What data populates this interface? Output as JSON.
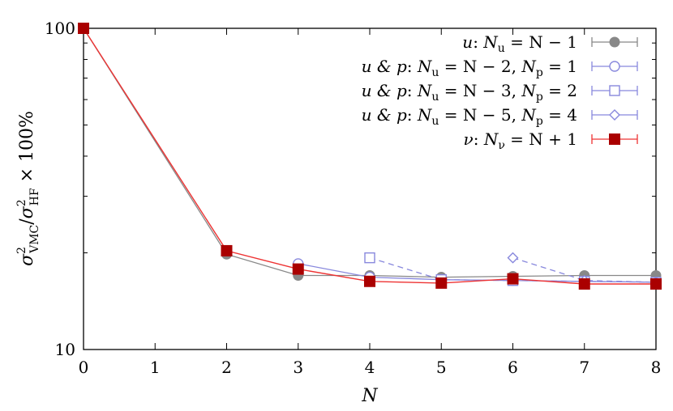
{
  "chart_data": {
    "type": "line",
    "x_scale": "linear",
    "y_scale": "log",
    "xlim": [
      0,
      8
    ],
    "ylim": [
      10,
      100
    ],
    "xticks": [
      0,
      1,
      2,
      3,
      4,
      5,
      6,
      7,
      8
    ],
    "yticks": [
      10,
      100
    ],
    "xlabel": "N",
    "ylabel": "σ²VMC/σ²HF × 100%",
    "grid": false,
    "legend_position": "top-right",
    "series": [
      {
        "name": "u: Nu = N − 1",
        "color": "#888888",
        "marker": "filled-circle",
        "dashed": false,
        "x": [
          0,
          2,
          3,
          4,
          5,
          6,
          7,
          8
        ],
        "y": [
          100,
          19.8,
          17.0,
          17.0,
          16.8,
          16.9,
          17.0,
          17.0
        ]
      },
      {
        "name": "u & p: Nu = N − 2, Np = 1",
        "color": "#8888dd",
        "marker": "open-circle",
        "dashed": false,
        "x": [
          3,
          4,
          5,
          6,
          7,
          8
        ],
        "y": [
          18.5,
          16.8,
          16.5,
          16.4,
          16.3,
          16.2
        ]
      },
      {
        "name": "u & p: Nu = N − 3, Np = 2",
        "color": "#8888dd",
        "marker": "open-square",
        "dashed": true,
        "x": [
          4,
          5,
          6,
          7,
          8
        ],
        "y": [
          19.3,
          16.5,
          16.4,
          16.3,
          16.2
        ]
      },
      {
        "name": "u & p: Nu = N − 5, Np = 4",
        "color": "#8888dd",
        "marker": "open-diamond",
        "dashed": true,
        "x": [
          6,
          7,
          8
        ],
        "y": [
          19.3,
          16.4,
          16.2
        ]
      },
      {
        "name": "ν: Nν = N + 1",
        "color": "#aa0000",
        "line_color": "#ee3333",
        "marker": "filled-square",
        "dashed": false,
        "x": [
          0,
          2,
          3,
          4,
          5,
          6,
          7,
          8
        ],
        "y": [
          100,
          20.3,
          17.8,
          16.3,
          16.1,
          16.6,
          16.0,
          16.0
        ]
      }
    ]
  },
  "legend": [
    {
      "pre": "u",
      "mid": ": ",
      "sub1_base": "N",
      "sub1": "u",
      "rest1": " = N − 1",
      "sub2_base": "",
      "sub2": "",
      "rest2": ""
    },
    {
      "pre": "u & p",
      "mid": ": ",
      "sub1_base": "N",
      "sub1": "u",
      "rest1": " = N − 2, ",
      "sub2_base": "N",
      "sub2": "p",
      "rest2": " = 1"
    },
    {
      "pre": "u & p",
      "mid": ": ",
      "sub1_base": "N",
      "sub1": "u",
      "rest1": " = N − 3, ",
      "sub2_base": "N",
      "sub2": "p",
      "rest2": " = 2"
    },
    {
      "pre": "u & p",
      "mid": ": ",
      "sub1_base": "N",
      "sub1": "u",
      "rest1": " = N − 5, ",
      "sub2_base": "N",
      "sub2": "p",
      "rest2": " = 4"
    },
    {
      "pre": "ν",
      "mid": ": ",
      "sub1_base": "N",
      "sub1": "ν",
      "rest1": " = N + 1",
      "sub2_base": "",
      "sub2": "",
      "rest2": ""
    }
  ],
  "y_title_parts": {
    "sigma": "σ",
    "sup": "2",
    "sub_vmc": "VMC",
    "slash": "/",
    "sub_hf": "HF",
    "tail": " × 100%"
  }
}
